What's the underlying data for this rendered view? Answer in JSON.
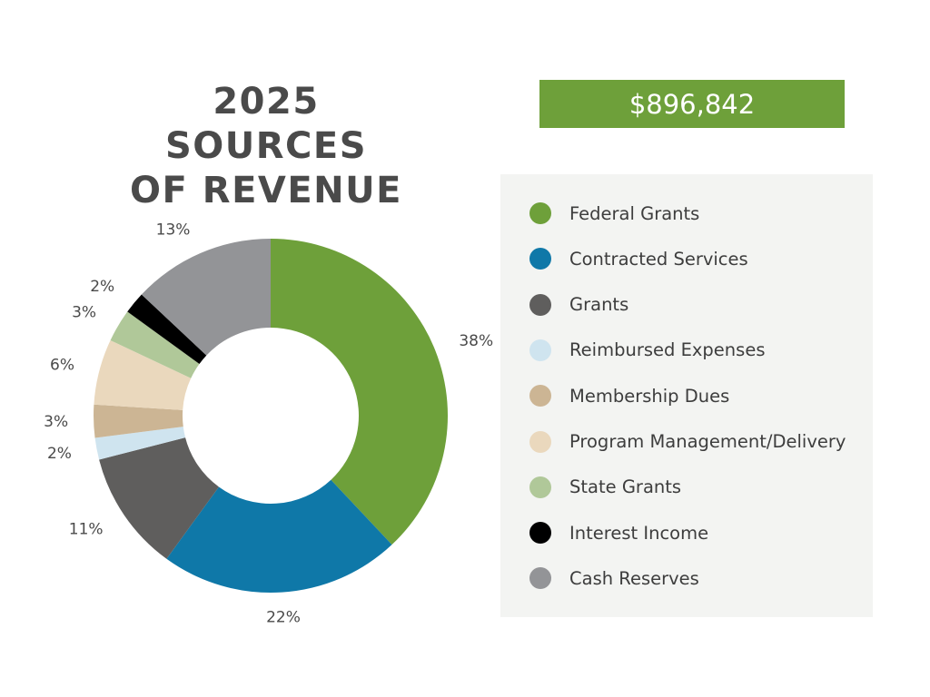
{
  "title_lines": [
    "2025 SOURCES",
    "OF REVENUE"
  ],
  "total": "$896,842",
  "chart_data": {
    "type": "pie",
    "title": "2025 SOURCES OF REVENUE",
    "series": [
      {
        "name": "Federal Grants",
        "value": 38,
        "label": "38%",
        "color": "#6ea03a"
      },
      {
        "name": "Contracted Services",
        "value": 22,
        "label": "22%",
        "color": "#0f78a8"
      },
      {
        "name": "Grants",
        "value": 11,
        "label": "11%",
        "color": "#5f5e5d"
      },
      {
        "name": "Reimbursed Expenses",
        "value": 2,
        "label": "2%",
        "color": "#cfe4ef"
      },
      {
        "name": "Membership Dues",
        "value": 3,
        "label": "3%",
        "color": "#ccb594"
      },
      {
        "name": "Program Management/Delivery",
        "value": 6,
        "label": "6%",
        "color": "#ead8bd"
      },
      {
        "name": "State Grants",
        "value": 3,
        "label": "3%",
        "color": "#b0c899"
      },
      {
        "name": "Interest Income",
        "value": 2,
        "label": "2%",
        "color": "#000000"
      },
      {
        "name": "Cash Reserves",
        "value": 13,
        "label": "13%",
        "color": "#939497"
      }
    ],
    "legend_position": "right",
    "donut": true
  }
}
